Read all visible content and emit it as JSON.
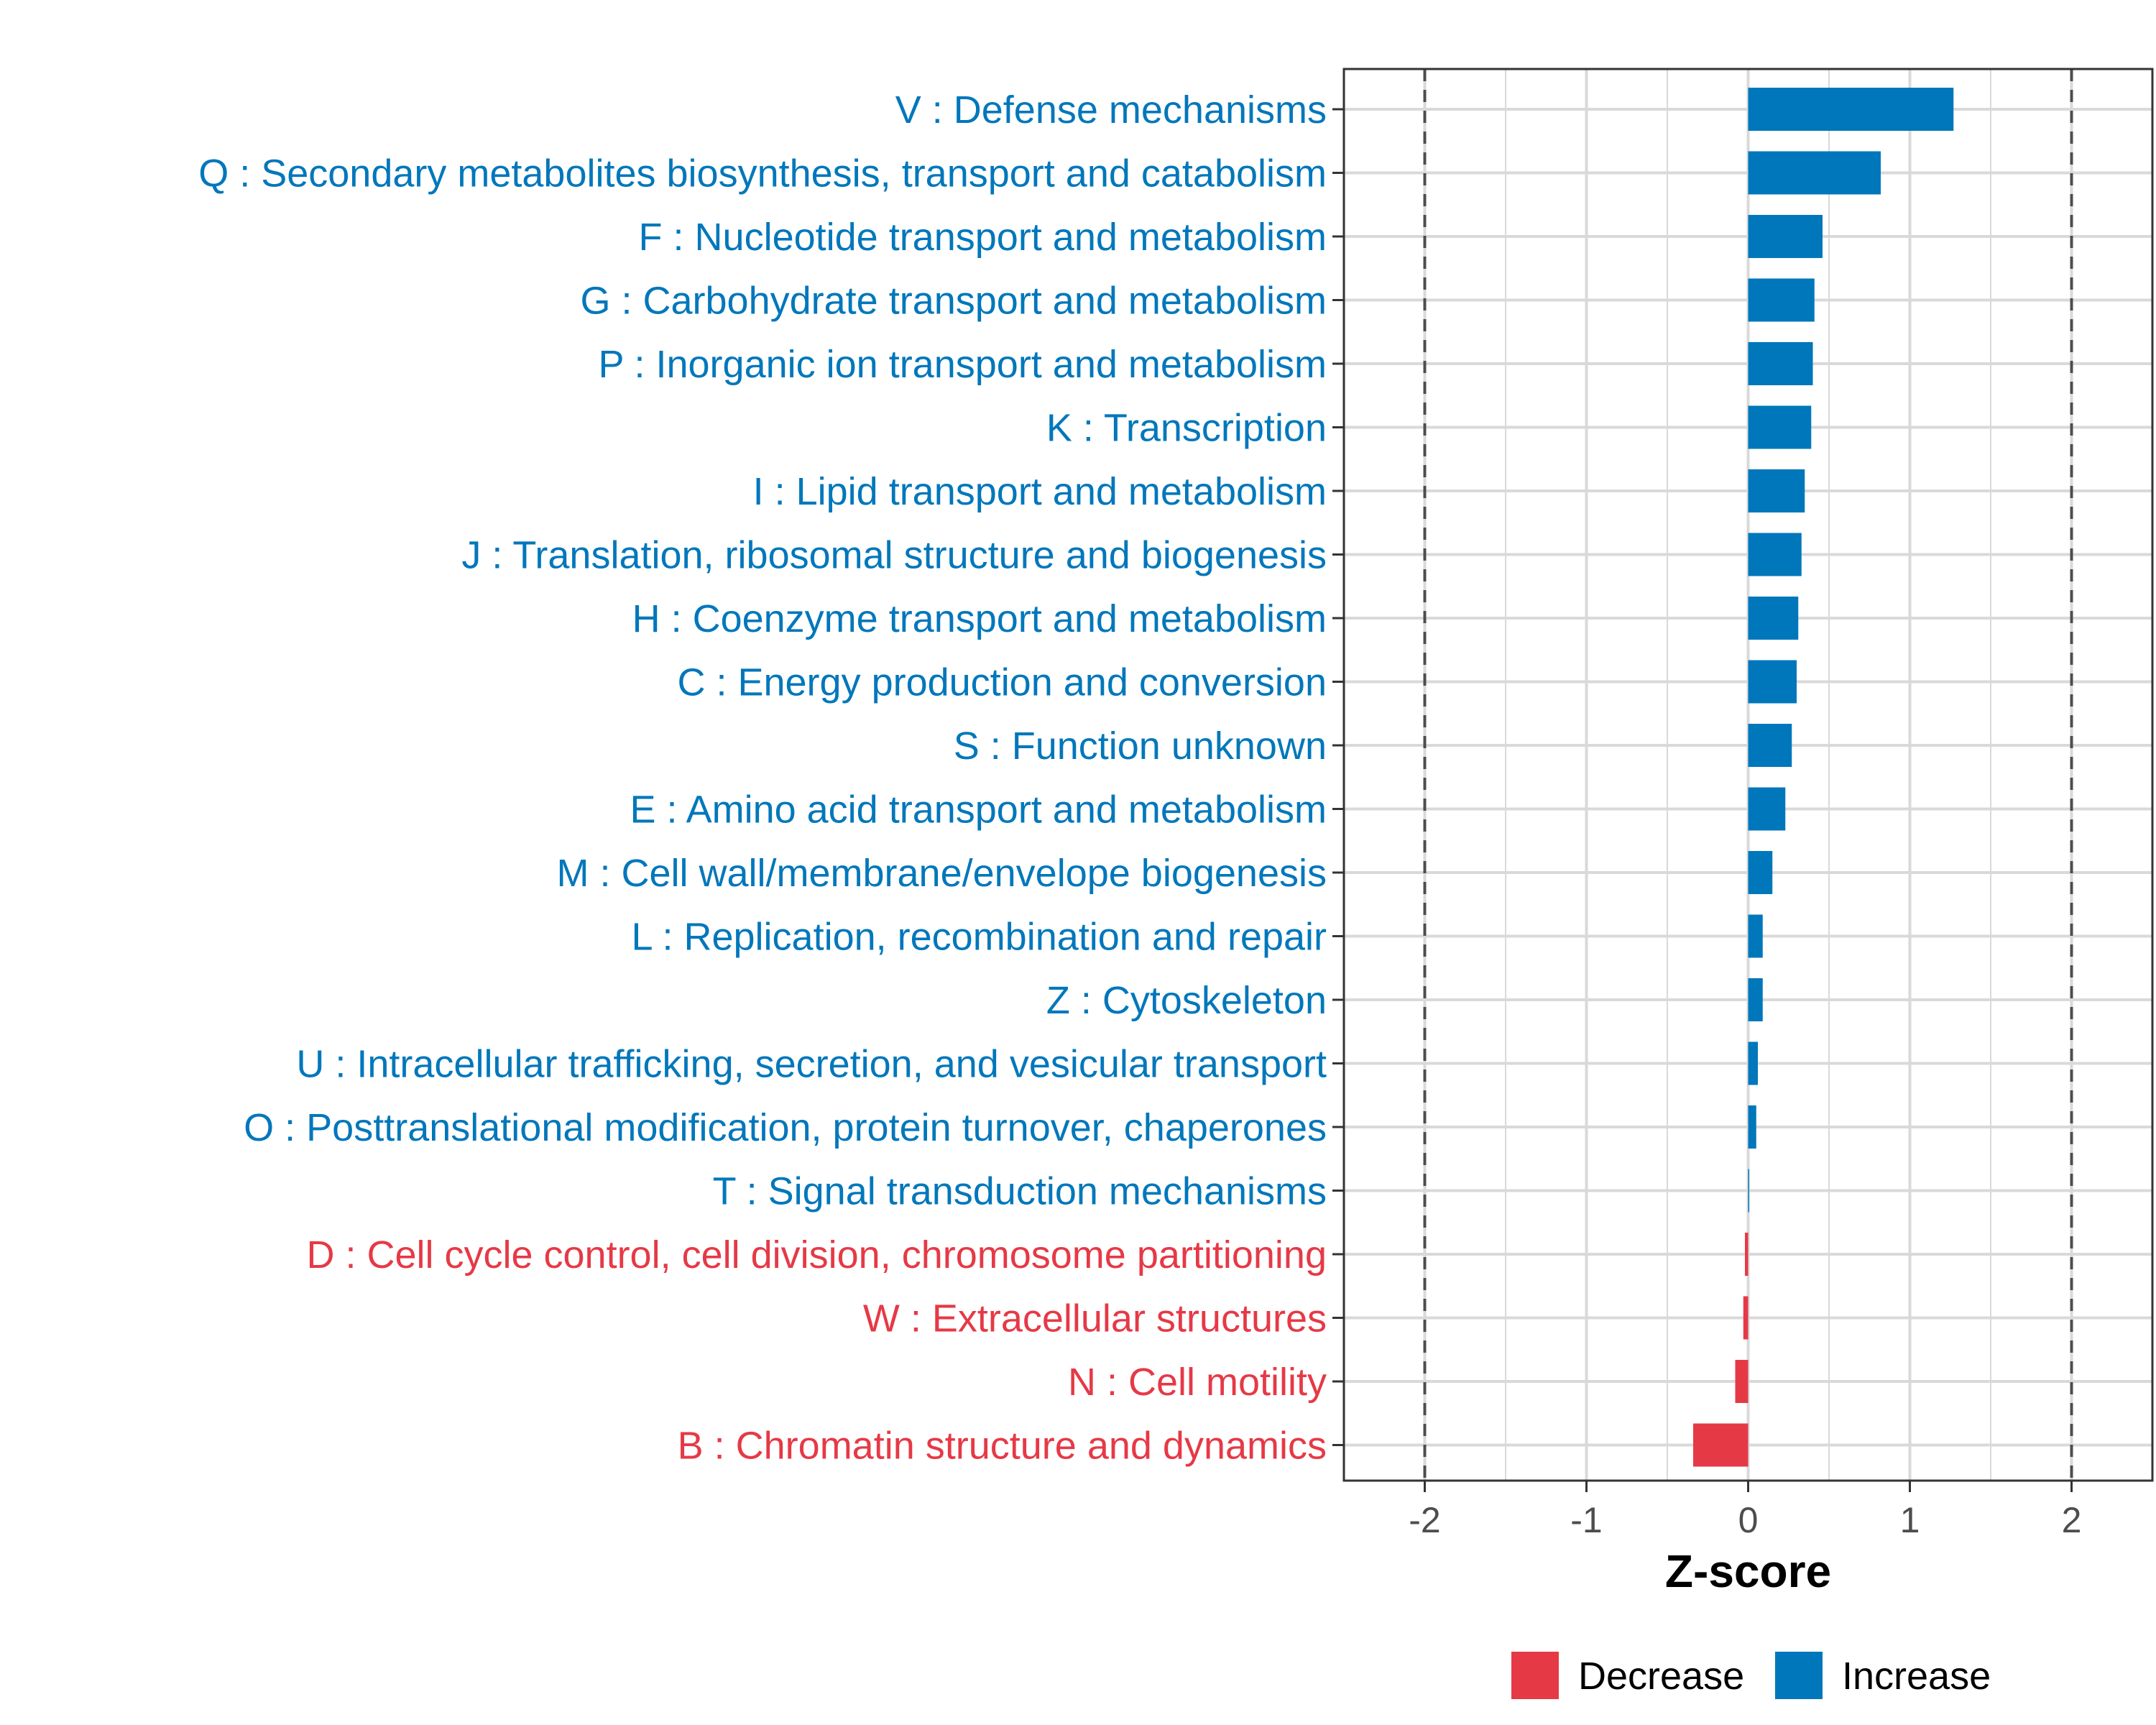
{
  "colors": {
    "increase": "#0077bb",
    "decrease": "#e63946",
    "grid": "#d9d9d9",
    "panel_border": "#333333",
    "reference_line": "#4d4d4d"
  },
  "chart_data": {
    "type": "bar",
    "orientation": "horizontal",
    "title": "",
    "xlabel": "Z-score",
    "ylabel": "",
    "xlim": [
      -2.5,
      2.5
    ],
    "xticks": [
      -2,
      -1,
      0,
      1,
      2
    ],
    "xtick_labels": [
      "-2",
      "-1",
      "0",
      "1",
      "2"
    ],
    "reference_lines": [
      -2,
      2
    ],
    "grid": true,
    "legend_position": "bottom",
    "legend": [
      {
        "label": "Decrease",
        "color": "#e63946"
      },
      {
        "label": "Increase",
        "color": "#0077bb"
      }
    ],
    "categories": [
      "V : Defense mechanisms",
      "Q : Secondary metabolites biosynthesis, transport and catabolism",
      "F : Nucleotide transport and metabolism",
      "G : Carbohydrate transport and metabolism",
      "P : Inorganic ion transport and metabolism",
      "K : Transcription",
      "I : Lipid transport and metabolism",
      "J : Translation, ribosomal structure and biogenesis",
      "H : Coenzyme transport and metabolism",
      "C : Energy production and conversion",
      "S : Function unknown",
      "E : Amino acid transport and metabolism",
      "M : Cell wall/membrane/envelope biogenesis",
      "L : Replication, recombination and repair",
      "Z : Cytoskeleton",
      "U : Intracellular trafficking, secretion, and vesicular transport",
      "O : Posttranslational modification, protein turnover, chaperones",
      "T : Signal transduction mechanisms",
      "D : Cell cycle control, cell division, chromosome partitioning",
      "W : Extracellular structures",
      "N : Cell motility",
      "B : Chromatin structure and dynamics"
    ],
    "values": [
      1.27,
      0.82,
      0.46,
      0.41,
      0.4,
      0.39,
      0.35,
      0.33,
      0.31,
      0.3,
      0.27,
      0.23,
      0.15,
      0.09,
      0.09,
      0.06,
      0.05,
      0.005,
      -0.02,
      -0.03,
      -0.08,
      -0.34
    ],
    "direction": [
      "Increase",
      "Increase",
      "Increase",
      "Increase",
      "Increase",
      "Increase",
      "Increase",
      "Increase",
      "Increase",
      "Increase",
      "Increase",
      "Increase",
      "Increase",
      "Increase",
      "Increase",
      "Increase",
      "Increase",
      "Increase",
      "Decrease",
      "Decrease",
      "Decrease",
      "Decrease"
    ]
  }
}
